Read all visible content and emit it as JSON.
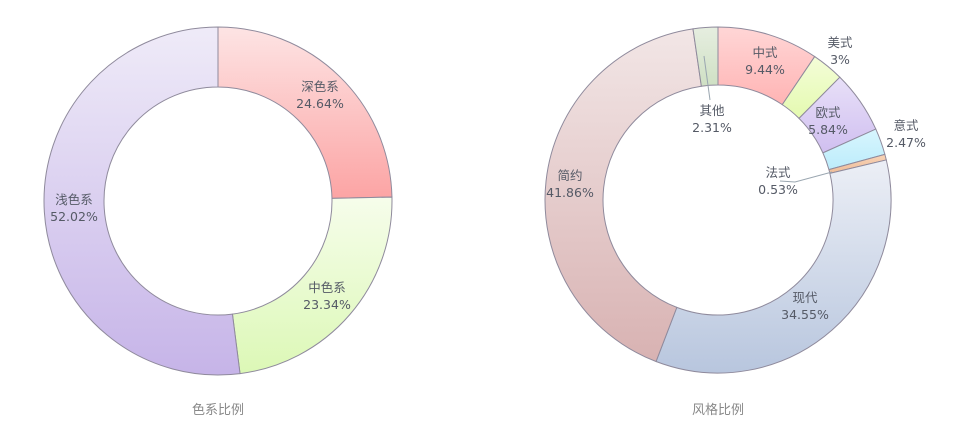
{
  "chart_data": [
    {
      "type": "pie",
      "donut": true,
      "title": "色系比例",
      "start": "top",
      "direction": "clockwise",
      "slices": [
        {
          "label": "深色系",
          "value": 24.64,
          "display": "24.64%",
          "color_top": "#fde4e4",
          "color_bottom": "#fca4a4"
        },
        {
          "label": "中色系",
          "value": 23.34,
          "display": "23.34%",
          "color_top": "#f6fdeb",
          "color_bottom": "#dcf8b6"
        },
        {
          "label": "浅色系",
          "value": 52.02,
          "display": "52.02%",
          "color_top": "#efebf8",
          "color_bottom": "#c6b4e8"
        }
      ]
    },
    {
      "type": "pie",
      "donut": true,
      "title": "风格比例",
      "start": "top",
      "direction": "clockwise",
      "slices": [
        {
          "label": "中式",
          "value": 9.44,
          "display": "9.44%",
          "color_top": "#ffd6d6",
          "color_bottom": "#ffb4b4"
        },
        {
          "label": "美式",
          "value": 3,
          "display": "3%",
          "color_top": "#f4fdd8",
          "color_bottom": "#e4fab0"
        },
        {
          "label": "欧式",
          "value": 5.84,
          "display": "5.84%",
          "color_top": "#e8e0f8",
          "color_bottom": "#d0bff0"
        },
        {
          "label": "意式",
          "value": 2.47,
          "display": "2.47%",
          "color_top": "#d8f6fe",
          "color_bottom": "#bcecfb"
        },
        {
          "label": "法式",
          "value": 0.53,
          "display": "0.53%",
          "color_top": "#f8d4b8",
          "color_bottom": "#eebc98"
        },
        {
          "label": "现代",
          "value": 34.55,
          "display": "34.55%",
          "color_top": "#eceff6",
          "color_bottom": "#b8c6de"
        },
        {
          "label": "简约",
          "value": 41.86,
          "display": "41.86%",
          "color_top": "#f2e6e6",
          "color_bottom": "#d8b2b2"
        },
        {
          "label": "其他",
          "value": 2.31,
          "display": "2.31%",
          "color_top": "#e6eee0",
          "color_bottom": "#cfe0c4"
        }
      ]
    }
  ]
}
